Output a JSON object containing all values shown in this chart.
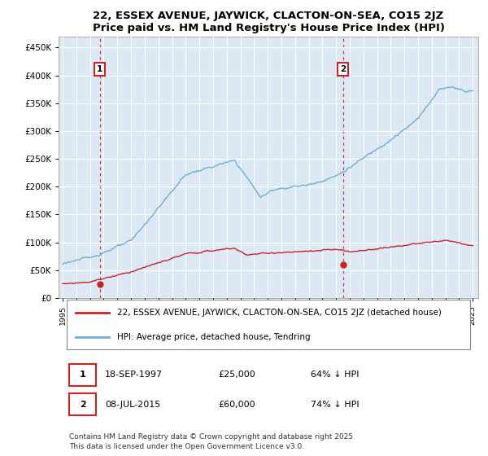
{
  "title": "22, ESSEX AVENUE, JAYWICK, CLACTON-ON-SEA, CO15 2JZ",
  "subtitle": "Price paid vs. HM Land Registry's House Price Index (HPI)",
  "background_color": "#dce9f5",
  "hpi_color": "#6baed6",
  "price_color": "#cc2222",
  "sale1_year": 1997.72,
  "sale1_price_val": 25000,
  "sale2_year": 2015.52,
  "sale2_price_val": 60000,
  "sale1_date": "18-SEP-1997",
  "sale1_price": "£25,000",
  "sale1_pct": "64% ↓ HPI",
  "sale2_date": "08-JUL-2015",
  "sale2_price": "£60,000",
  "sale2_pct": "74% ↓ HPI",
  "legend1": "22, ESSEX AVENUE, JAYWICK, CLACTON-ON-SEA, CO15 2JZ (detached house)",
  "legend2": "HPI: Average price, detached house, Tendring",
  "footer": "Contains HM Land Registry data © Crown copyright and database right 2025.\nThis data is licensed under the Open Government Licence v3.0.",
  "ylim": [
    0,
    470000
  ],
  "yticks": [
    0,
    50000,
    100000,
    150000,
    200000,
    250000,
    300000,
    350000,
    400000,
    450000
  ],
  "ytick_labels": [
    "£0",
    "£50K",
    "£100K",
    "£150K",
    "£200K",
    "£250K",
    "£300K",
    "£350K",
    "£400K",
    "£450K"
  ]
}
